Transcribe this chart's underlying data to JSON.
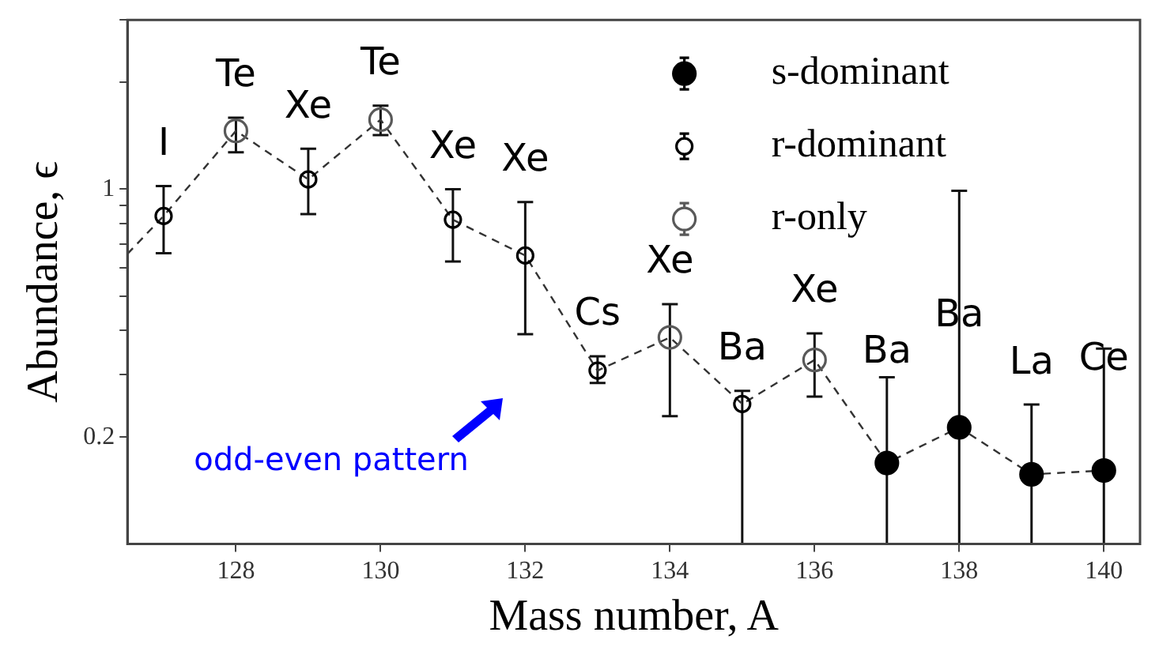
{
  "chart_data": {
    "type": "scatter",
    "xlabel": "Mass number, A",
    "ylabel": "Abundance, ϵ",
    "log": "y",
    "xlim": [
      126.5,
      140.5
    ],
    "xticks": [
      128,
      130,
      132,
      134,
      136,
      138,
      140
    ],
    "ylim": [
      0.1,
      3
    ],
    "yticks": [
      {
        "value": 0.2,
        "label": "0.2"
      },
      {
        "value": 0.3,
        "label": null
      },
      {
        "value": 0.4,
        "label": null
      },
      {
        "value": 0.5,
        "label": null
      },
      {
        "value": 0.6,
        "label": null
      },
      {
        "value": 0.7,
        "label": null
      },
      {
        "value": 0.8,
        "label": null
      },
      {
        "value": 0.9,
        "label": null
      },
      {
        "value": 1,
        "label": "1"
      },
      {
        "value": 2,
        "label": null
      },
      {
        "value": 3,
        "label": null
      }
    ],
    "grid": false,
    "legend": "top right",
    "marker": "circle",
    "series": [
      {
        "name": "s-dominant",
        "color": "#000000",
        "x": [
          137,
          138,
          139,
          140
        ],
        "values": [
          0.169,
          0.213,
          0.157,
          0.161
        ],
        "errors": [
          [
            0.1,
            0.295
          ],
          [
            0.1,
            0.99
          ],
          [
            0.1,
            0.247
          ],
          [
            0.1,
            0.355
          ]
        ]
      },
      {
        "name": "r-dominant",
        "color": "#000000",
        "x": [
          127,
          129,
          131,
          132,
          133,
          135
        ],
        "values": [
          0.84,
          1.065,
          0.82,
          0.65,
          0.308,
          0.248
        ],
        "errors": [
          [
            0.66,
            1.02
          ],
          [
            0.85,
            1.3
          ],
          [
            0.625,
            1.0
          ],
          [
            0.39,
            0.92
          ],
          [
            0.284,
            0.338
          ],
          [
            0.1,
            0.27
          ]
        ]
      },
      {
        "name": "r-only",
        "color": "#595959",
        "x": [
          128,
          130,
          134,
          136
        ],
        "values": [
          1.46,
          1.57,
          0.382,
          0.33
        ],
        "errors": [
          [
            1.27,
            1.59
          ],
          [
            1.42,
            1.72
          ],
          [
            0.229,
            0.474
          ],
          [
            0.26,
            0.392
          ]
        ]
      },
      {
        "type": "line",
        "color": "#333333",
        "line_style": "dashed",
        "marker": "none",
        "x": [
          126.5,
          127,
          128,
          129,
          130,
          131,
          132,
          133,
          134,
          135,
          136,
          137,
          138,
          139,
          140
        ],
        "values": [
          0.657,
          0.84,
          1.46,
          1.065,
          1.57,
          0.82,
          0.65,
          0.308,
          0.382,
          0.248,
          0.33,
          0.169,
          0.213,
          0.157,
          0.161
        ]
      }
    ],
    "annotations": [
      {
        "text": "I",
        "x": 127,
        "y": 0.84
      },
      {
        "text": "Te",
        "x": 128,
        "y": 1.46
      },
      {
        "text": "Xe",
        "x": 129,
        "y": 1.065
      },
      {
        "text": "Te",
        "x": 130,
        "y": 1.57
      },
      {
        "text": "Xe",
        "x": 131,
        "y": 0.82
      },
      {
        "text": "Xe",
        "x": 132,
        "y": 0.65
      },
      {
        "text": "Cs",
        "x": 133,
        "y": 0.308
      },
      {
        "text": "Xe",
        "x": 134,
        "y": 0.382
      },
      {
        "text": "Ba",
        "x": 135,
        "y": 0.248
      },
      {
        "text": "Xe",
        "x": 136,
        "y": 0.33
      },
      {
        "text": "Ba",
        "x": 137,
        "y": 0.169
      },
      {
        "text": "Ba",
        "x": 138,
        "y": 0.213
      },
      {
        "text": "La",
        "x": 139,
        "y": 0.157
      },
      {
        "text": "Ce",
        "x": 140,
        "y": 0.161
      },
      "odd-even pattern"
    ]
  }
}
